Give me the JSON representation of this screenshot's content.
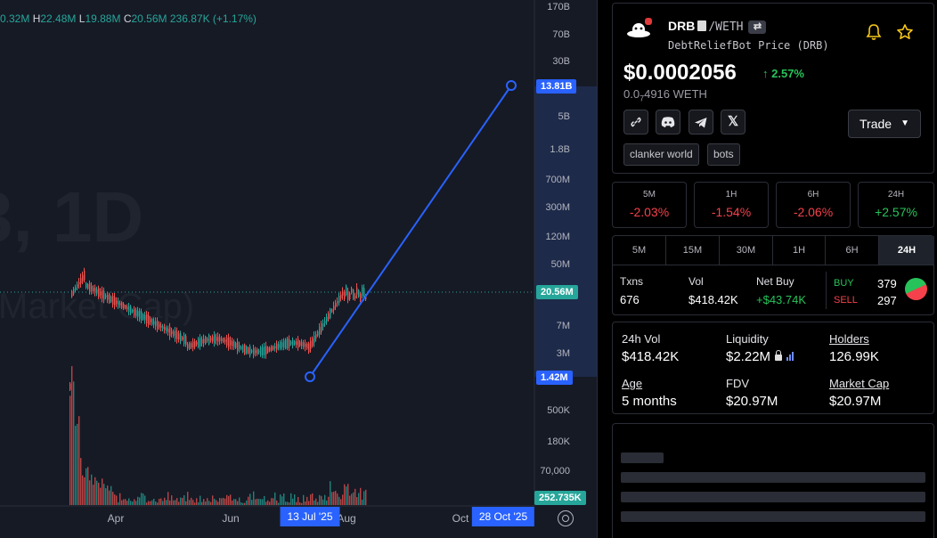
{
  "chart": {
    "ohlc": {
      "open_value": "0.32M",
      "high_key": "H",
      "high_value": "22.48M",
      "low_key": "L",
      "low_value": "19.88M",
      "close_key": "C",
      "close_value": "20.56M",
      "volume_change": "236.87K (+1.17%)"
    },
    "watermark_symbol": "3, 1D",
    "watermark_metric": "Market Cap)",
    "price_axis_labels": [
      "170B",
      "70B",
      "30B",
      "5B",
      "1.8B",
      "700M",
      "300M",
      "120M",
      "50M",
      "7M",
      "3M",
      "500K",
      "180K",
      "70,000"
    ],
    "line_start_tag": "1.42M",
    "line_end_tag": "13.81B",
    "last_price_tag": "20.56M",
    "volume_tag": "252.735K",
    "time_labels": [
      "Apr",
      "Jun",
      "Aug",
      "Oct"
    ],
    "line_start_date": "13 Jul '25",
    "line_end_date": "28 Oct '25",
    "colors": {
      "up": "#26a69a",
      "down": "#ef5350",
      "line": "#2962ff",
      "background": "#161a25"
    }
  },
  "token": {
    "symbol": "DRB",
    "quote": "/WETH",
    "full_name": "DebtReliefBot Price (DRB)",
    "price_usd": "$0.0002056",
    "price_change": "2.57%",
    "price_native_prefix": "0.0",
    "price_native_sub": "7",
    "price_native_rest": "4916 WETH",
    "trade_label": "Trade",
    "tags": [
      "clanker world",
      "bots"
    ],
    "socials": [
      "link-icon",
      "discord-icon",
      "telegram-icon",
      "x-icon"
    ]
  },
  "timeframes": [
    {
      "label": "5M",
      "value": "-2.03%"
    },
    {
      "label": "1H",
      "value": "-1.54%"
    },
    {
      "label": "6H",
      "value": "-2.06%"
    },
    {
      "label": "24H",
      "value": "+2.57%"
    }
  ],
  "tabs": [
    "5M",
    "15M",
    "30M",
    "1H",
    "6H",
    "24H"
  ],
  "active_tab": "24H",
  "txstats": {
    "txns_label": "Txns",
    "txns_value": "676",
    "vol_label": "Vol",
    "vol_value": "$418.42K",
    "netbuy_label": "Net Buy",
    "netbuy_value": "+$43.74K",
    "buy_label": "BUY",
    "buy_value": "379",
    "sell_label": "SELL",
    "sell_value": "297"
  },
  "stats": {
    "vol24_label": "24h Vol",
    "vol24_value": "$418.42K",
    "liquidity_label": "Liquidity",
    "liquidity_value": "$2.22M",
    "holders_label": "Holders",
    "holders_value": "126.99K",
    "age_label": "Age",
    "age_value": "5 months",
    "fdv_label": "FDV",
    "fdv_value": "$20.97M",
    "mcap_label": "Market Cap",
    "mcap_value": "$20.97M"
  }
}
